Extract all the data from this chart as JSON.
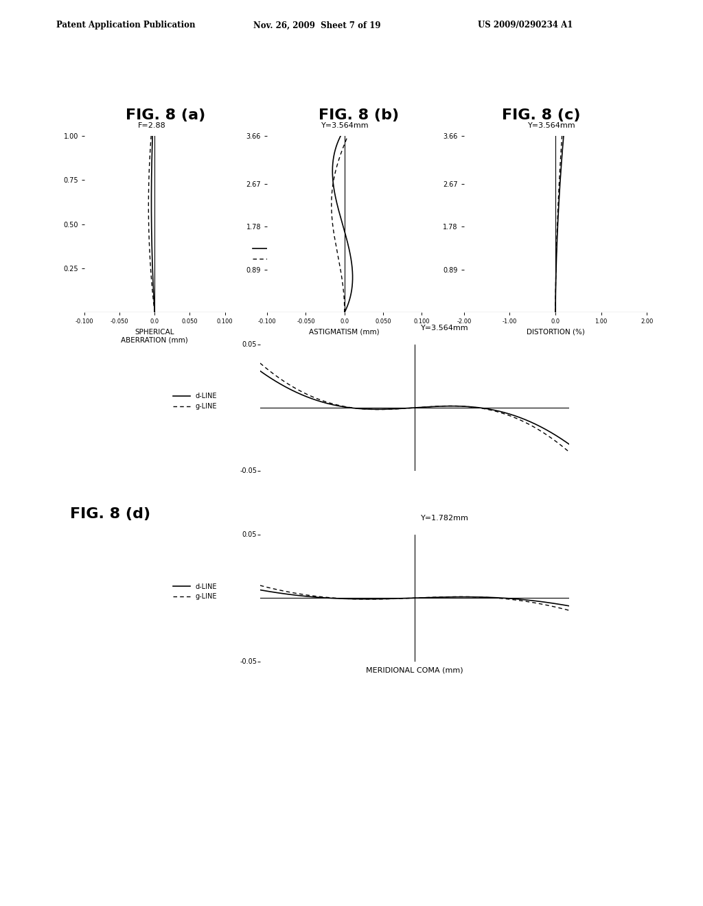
{
  "header_left": "Patent Application Publication",
  "header_mid": "Nov. 26, 2009  Sheet 7 of 19",
  "header_right": "US 2009/0290234 A1",
  "fig_label_a": "FIG. 8 (a)",
  "fig_label_b": "FIG. 8 (b)",
  "fig_label_c": "FIG. 8 (c)",
  "fig_label_d": "FIG. 8 (d)",
  "background_color": "#ffffff",
  "sa_title": "F=2.88",
  "sa_xlabel": "SPHERICAL\nABERRATION (mm)",
  "sa_xlim": [
    -0.1,
    0.1
  ],
  "sa_xticks": [
    -0.1,
    -0.05,
    0.0,
    0.05,
    0.1
  ],
  "sa_xticklabels": [
    "-0.100",
    "-0.050",
    "0.0",
    "0.050",
    "0.100"
  ],
  "sa_yticks": [
    0.25,
    0.5,
    0.75,
    1.0
  ],
  "sa_yticklabels": [
    "0.25",
    "0.50",
    "0.75",
    "1.00"
  ],
  "sa_ylim": [
    0.0,
    1.0
  ],
  "astig_title": "Y=3.564mm",
  "astig_xlabel": "ASTIGMATISM (mm)",
  "astig_xlim": [
    -0.1,
    0.1
  ],
  "astig_xticks": [
    -0.1,
    -0.05,
    0.0,
    0.05,
    0.1
  ],
  "astig_xticklabels": [
    "-0.100",
    "-0.050",
    "0.0",
    "0.050",
    "0.100"
  ],
  "astig_yticks": [
    0.89,
    1.78,
    2.67,
    3.66
  ],
  "astig_yticklabels": [
    "0.89",
    "1.78",
    "2.67",
    "3.66"
  ],
  "astig_ylim": [
    0.0,
    3.66
  ],
  "dist_title": "Y=3.564mm",
  "dist_xlabel": "DISTORTION (%)",
  "dist_xlim": [
    -2.0,
    2.0
  ],
  "dist_xticks": [
    -2.0,
    -1.0,
    0.0,
    1.0,
    2.0
  ],
  "dist_xticklabels": [
    "-2.00",
    "-1.00",
    "0.0",
    "1.00",
    "2.00"
  ],
  "dist_yticks": [
    0.89,
    1.78,
    2.67,
    3.66
  ],
  "dist_yticklabels": [
    "0.89",
    "1.78",
    "2.67",
    "3.66"
  ],
  "dist_ylim": [
    0.0,
    3.66
  ],
  "coma_c_title": "Y=3.564mm",
  "coma_c_ylim": [
    -0.05,
    0.05
  ],
  "coma_d_title": "Y=1.782mm",
  "coma_d_xlabel": "MERIDIONAL COMA (mm)",
  "coma_d_ylim": [
    -0.05,
    0.05
  ]
}
